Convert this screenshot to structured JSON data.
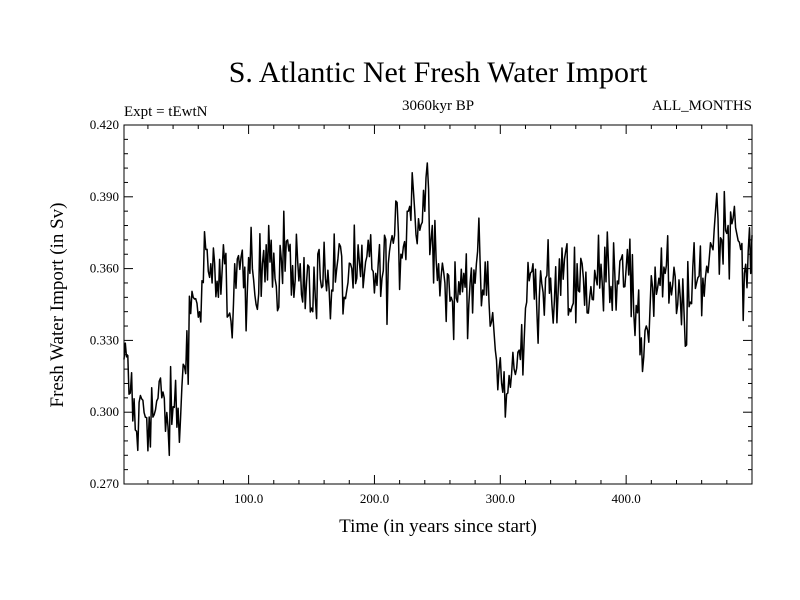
{
  "chart_data": {
    "type": "line",
    "title": "S. Atlantic Net Fresh Water Import",
    "subtitle_left": "Expt = tEwtN",
    "subtitle_center": "3060kyr BP",
    "subtitle_right": "ALL_MONTHS",
    "xlabel": "Time (in years since start)",
    "ylabel": "Fresh Water Import (in Sv)",
    "xlim": [
      1,
      500
    ],
    "ylim": [
      0.27,
      0.42
    ],
    "xticks": [
      100,
      200,
      300,
      400
    ],
    "xtick_labels": [
      "100.0",
      "200.0",
      "300.0",
      "400.0"
    ],
    "yticks": [
      0.27,
      0.3,
      0.33,
      0.36,
      0.39,
      0.42
    ],
    "ytick_labels": [
      "0.270",
      "0.300",
      "0.330",
      "0.360",
      "0.390",
      "0.420"
    ],
    "grid": false,
    "series": [
      {
        "name": "Net Fresh Water Import",
        "color": "#000000",
        "x": [
          1,
          6,
          11,
          16,
          21,
          26,
          31,
          36,
          41,
          46,
          51,
          56,
          61,
          66,
          71,
          76,
          81,
          86,
          91,
          96,
          101,
          106,
          111,
          116,
          121,
          126,
          131,
          136,
          141,
          146,
          151,
          156,
          161,
          166,
          171,
          176,
          181,
          186,
          191,
          196,
          201,
          206,
          211,
          216,
          221,
          226,
          231,
          236,
          241,
          246,
          251,
          256,
          261,
          266,
          271,
          276,
          281,
          286,
          291,
          296,
          301,
          306,
          311,
          316,
          321,
          326,
          331,
          336,
          341,
          346,
          351,
          356,
          361,
          366,
          371,
          376,
          381,
          386,
          391,
          396,
          401,
          406,
          411,
          416,
          421,
          426,
          431,
          436,
          441,
          446,
          451,
          456,
          461,
          466,
          471,
          476,
          481,
          486,
          491,
          496,
          500
        ],
        "values": [
          0.322,
          0.308,
          0.292,
          0.305,
          0.298,
          0.301,
          0.306,
          0.294,
          0.302,
          0.298,
          0.334,
          0.348,
          0.342,
          0.368,
          0.354,
          0.348,
          0.362,
          0.338,
          0.364,
          0.352,
          0.358,
          0.345,
          0.362,
          0.378,
          0.356,
          0.364,
          0.372,
          0.348,
          0.362,
          0.354,
          0.342,
          0.368,
          0.356,
          0.351,
          0.364,
          0.348,
          0.362,
          0.356,
          0.352,
          0.365,
          0.358,
          0.356,
          0.362,
          0.374,
          0.366,
          0.384,
          0.392,
          0.376,
          0.398,
          0.378,
          0.362,
          0.354,
          0.348,
          0.346,
          0.358,
          0.354,
          0.362,
          0.351,
          0.346,
          0.326,
          0.312,
          0.308,
          0.318,
          0.322,
          0.346,
          0.362,
          0.348,
          0.356,
          0.345,
          0.351,
          0.364,
          0.342,
          0.362,
          0.356,
          0.348,
          0.356,
          0.354,
          0.362,
          0.358,
          0.364,
          0.368,
          0.342,
          0.324,
          0.336,
          0.352,
          0.356,
          0.358,
          0.349,
          0.345,
          0.342,
          0.346,
          0.354,
          0.356,
          0.364,
          0.384,
          0.372,
          0.378,
          0.386,
          0.368,
          0.352,
          0.374
        ]
      }
    ]
  }
}
